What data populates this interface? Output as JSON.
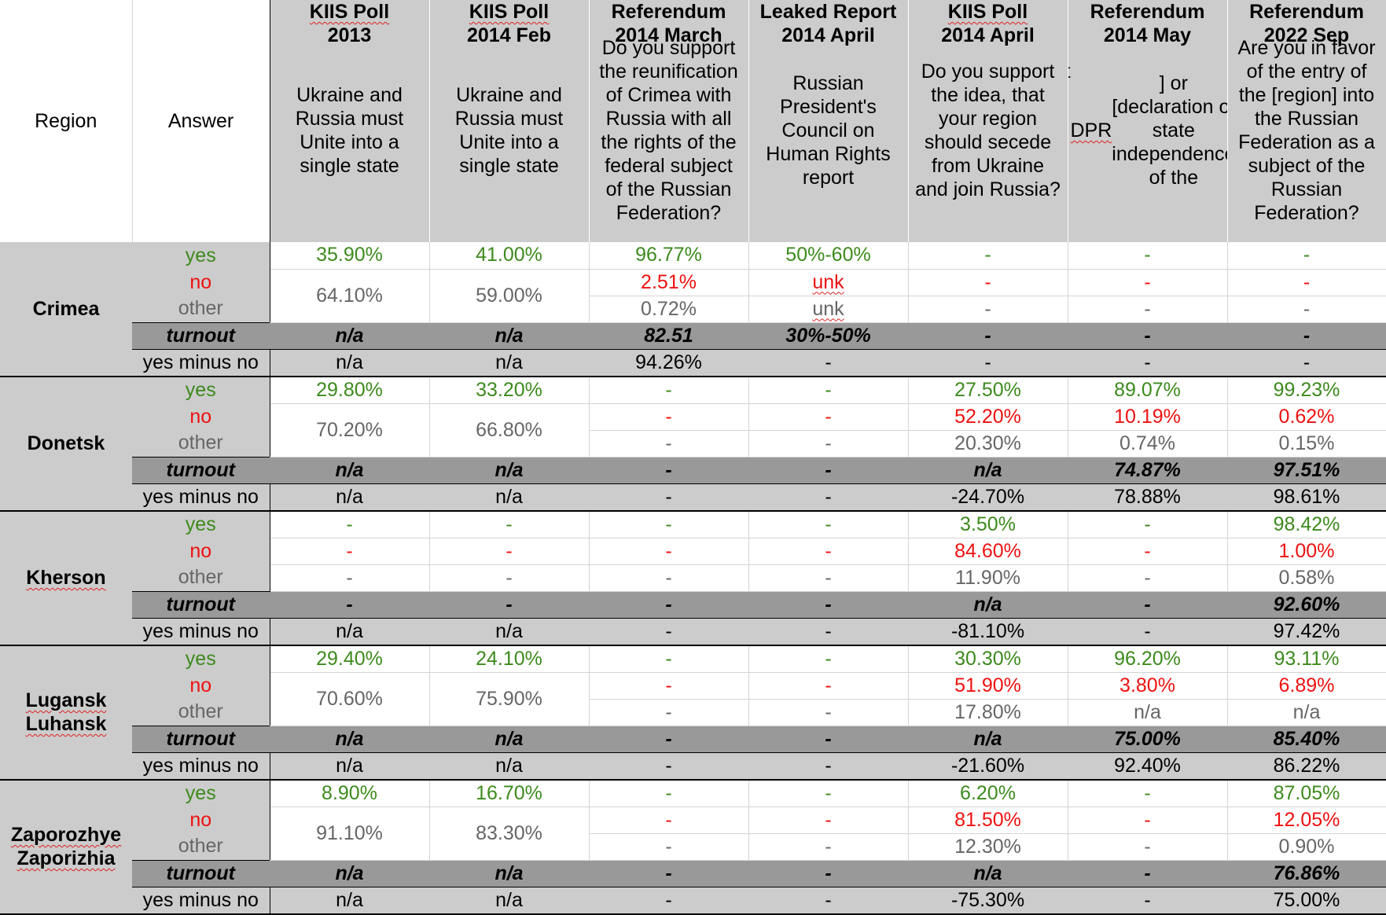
{
  "header": {
    "region": "Region",
    "answer": "Answer",
    "columns": [
      {
        "title1": "KIIS Poll",
        "title2": "2013",
        "question": "Ukraine and Russia must Unite into a single state"
      },
      {
        "title1": "KIIS Poll",
        "title2": "2014 Feb",
        "question": "Ukraine and Russia must Unite into a single state"
      },
      {
        "title1": "Referendum",
        "title2": "2014 March",
        "question": "Do you support the reunification of Crimea with Russia with all the rights of the federal subject of the Russian Federation?"
      },
      {
        "title1": "Leaked Report",
        "title2": "2014 April",
        "question": "Russian President's Council on Human Rights report"
      },
      {
        "title1": "KIIS Poll",
        "title2": "2014 April",
        "question": "Do you support the idea, that your region should secede from Ukraine and join Russia?"
      },
      {
        "title1": "Referendum",
        "title2": "2014 May",
        "question": "Do you support the [Act of State Self-rule of the DPR] or [declaration of state independence of the LPR]?"
      },
      {
        "title1": "Referendum",
        "title2": "2022 Sep",
        "question": "Are you in favor of the entry of the [region] into the Russian Federation as a subject of the Russian Federation?"
      }
    ]
  },
  "labels": {
    "yes": "yes",
    "no": "no",
    "other": "other",
    "turnout": "turnout",
    "yes_minus_no": "yes minus no"
  },
  "regions": [
    {
      "name": [
        "Crimea"
      ],
      "yes": [
        "35.90%",
        "41.00%",
        "96.77%",
        "50%-60%",
        "-",
        "-",
        "-"
      ],
      "no": [
        "2.51%",
        "unk",
        "-",
        "-",
        "-"
      ],
      "nootherMerged": [
        "64.10%",
        "59.00%"
      ],
      "other": [
        "0.72%",
        "unk",
        "-",
        "-",
        "-"
      ],
      "turnout": [
        "n/a",
        "n/a",
        "82.51",
        "30%-50%",
        "-",
        "-",
        "-"
      ],
      "yes_minus_no": [
        "n/a",
        "n/a",
        "94.26%",
        "-",
        "-",
        "-",
        "-"
      ]
    },
    {
      "name": [
        "Donetsk"
      ],
      "yes": [
        "29.80%",
        "33.20%",
        "-",
        "-",
        "27.50%",
        "89.07%",
        "99.23%"
      ],
      "no": [
        "-",
        "-",
        "52.20%",
        "10.19%",
        "0.62%"
      ],
      "nootherMerged": [
        "70.20%",
        "66.80%"
      ],
      "other": [
        "-",
        "-",
        "20.30%",
        "0.74%",
        "0.15%"
      ],
      "turnout": [
        "n/a",
        "n/a",
        "-",
        "-",
        "n/a",
        "74.87%",
        "97.51%"
      ],
      "yes_minus_no": [
        "n/a",
        "n/a",
        "-",
        "-",
        "-24.70%",
        "78.88%",
        "98.61%"
      ]
    },
    {
      "name": [
        "Kherson"
      ],
      "yes": [
        "-",
        "-",
        "-",
        "-",
        "3.50%",
        "-",
        "98.42%"
      ],
      "no": [
        "-",
        "-",
        "-",
        "-",
        "84.60%",
        "-",
        "1.00%"
      ],
      "other": [
        "-",
        "-",
        "-",
        "-",
        "11.90%",
        "-",
        "0.58%"
      ],
      "turnout": [
        "-",
        "-",
        "-",
        "-",
        "n/a",
        "-",
        "92.60%"
      ],
      "yes_minus_no": [
        "n/a",
        "n/a",
        "-",
        "-",
        "-81.10%",
        "-",
        "97.42%"
      ]
    },
    {
      "name": [
        "Lugansk",
        "Luhansk"
      ],
      "yes": [
        "29.40%",
        "24.10%",
        "-",
        "-",
        "30.30%",
        "96.20%",
        "93.11%"
      ],
      "no": [
        "-",
        "-",
        "51.90%",
        "3.80%",
        "6.89%"
      ],
      "nootherMerged": [
        "70.60%",
        "75.90%"
      ],
      "other": [
        "-",
        "-",
        "17.80%",
        "n/a",
        "n/a"
      ],
      "turnout": [
        "n/a",
        "n/a",
        "-",
        "-",
        "n/a",
        "75.00%",
        "85.40%"
      ],
      "yes_minus_no": [
        "n/a",
        "n/a",
        "-",
        "-",
        "-21.60%",
        "92.40%",
        "86.22%"
      ]
    },
    {
      "name": [
        "Zaporozhye",
        "Zaporizhia"
      ],
      "yes": [
        "8.90%",
        "16.70%",
        "-",
        "-",
        "6.20%",
        "-",
        "87.05%"
      ],
      "no": [
        "-",
        "-",
        "81.50%",
        "-",
        "12.05%"
      ],
      "nootherMerged": [
        "91.10%",
        "83.30%"
      ],
      "other": [
        "-",
        "-",
        "12.30%",
        "-",
        "0.90%"
      ],
      "turnout": [
        "n/a",
        "n/a",
        "-",
        "-",
        "n/a",
        "-",
        "76.86%"
      ],
      "yes_minus_no": [
        "n/a",
        "n/a",
        "-",
        "-",
        "-75.30%",
        "-",
        "75.00%"
      ]
    }
  ],
  "colors": {
    "yes": "#3d8a1d",
    "no": "#ee1111",
    "other": "#666666",
    "header_bg": "#cccccc",
    "turnout_bg": "#999999"
  }
}
